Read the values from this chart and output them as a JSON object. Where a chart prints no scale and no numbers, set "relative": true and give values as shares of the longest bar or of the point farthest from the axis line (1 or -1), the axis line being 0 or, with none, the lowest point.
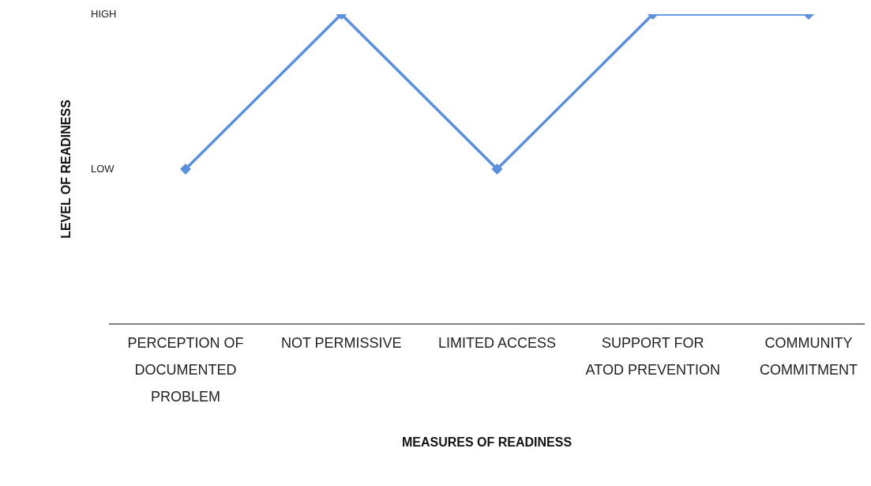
{
  "chart_data": {
    "type": "line",
    "relative": true,
    "xlabel": "MEASURES OF READINESS",
    "ylabel": "LEVEL OF READINESS",
    "categories": [
      "PERCEPTION OF DOCUMENTED PROBLEM",
      "NOT PERMISSIVE",
      "LIMITED ACCESS",
      "SUPPORT FOR ATOD PREVENTION",
      "COMMUNITY COMMITMENT"
    ],
    "values": [
      0.5,
      1,
      0.5,
      1,
      1
    ],
    "color": "#5b8fdb",
    "marker": "diamond",
    "annotations": [
      "LOW",
      "HIGH"
    ]
  }
}
